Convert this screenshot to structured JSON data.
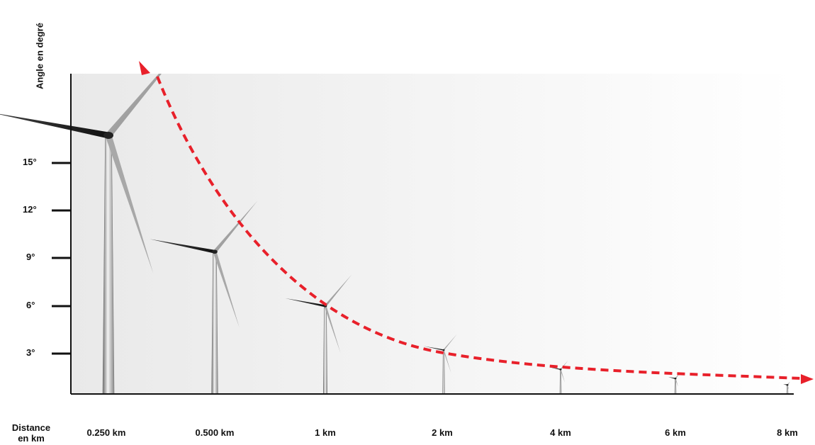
{
  "y_axis": {
    "label": "Angle en degré",
    "ticks": [
      "15°",
      "12°",
      "9°",
      "6°",
      "3°"
    ]
  },
  "x_axis": {
    "title_line1": "Distance",
    "title_line2": "en km",
    "labels": [
      "0.250 km",
      "0.500 km",
      "1 km",
      "2 km",
      "4 km",
      "6 km",
      "8 km"
    ]
  },
  "turbines": [
    {
      "distance": "0.250 km",
      "apparent_scale": 1.0
    },
    {
      "distance": "0.500 km",
      "apparent_scale": 0.55
    },
    {
      "distance": "1 km",
      "apparent_scale": 0.34
    },
    {
      "distance": "2 km",
      "apparent_scale": 0.17
    },
    {
      "distance": "4 km",
      "apparent_scale": 0.095
    },
    {
      "distance": "6 km",
      "apparent_scale": 0.06
    },
    {
      "distance": "8 km",
      "apparent_scale": 0.035
    }
  ],
  "colors": {
    "curve": "#e8202a",
    "axis": "#111111",
    "background_shade": "#eeeeee",
    "turbine": "#9a9a9a"
  }
}
